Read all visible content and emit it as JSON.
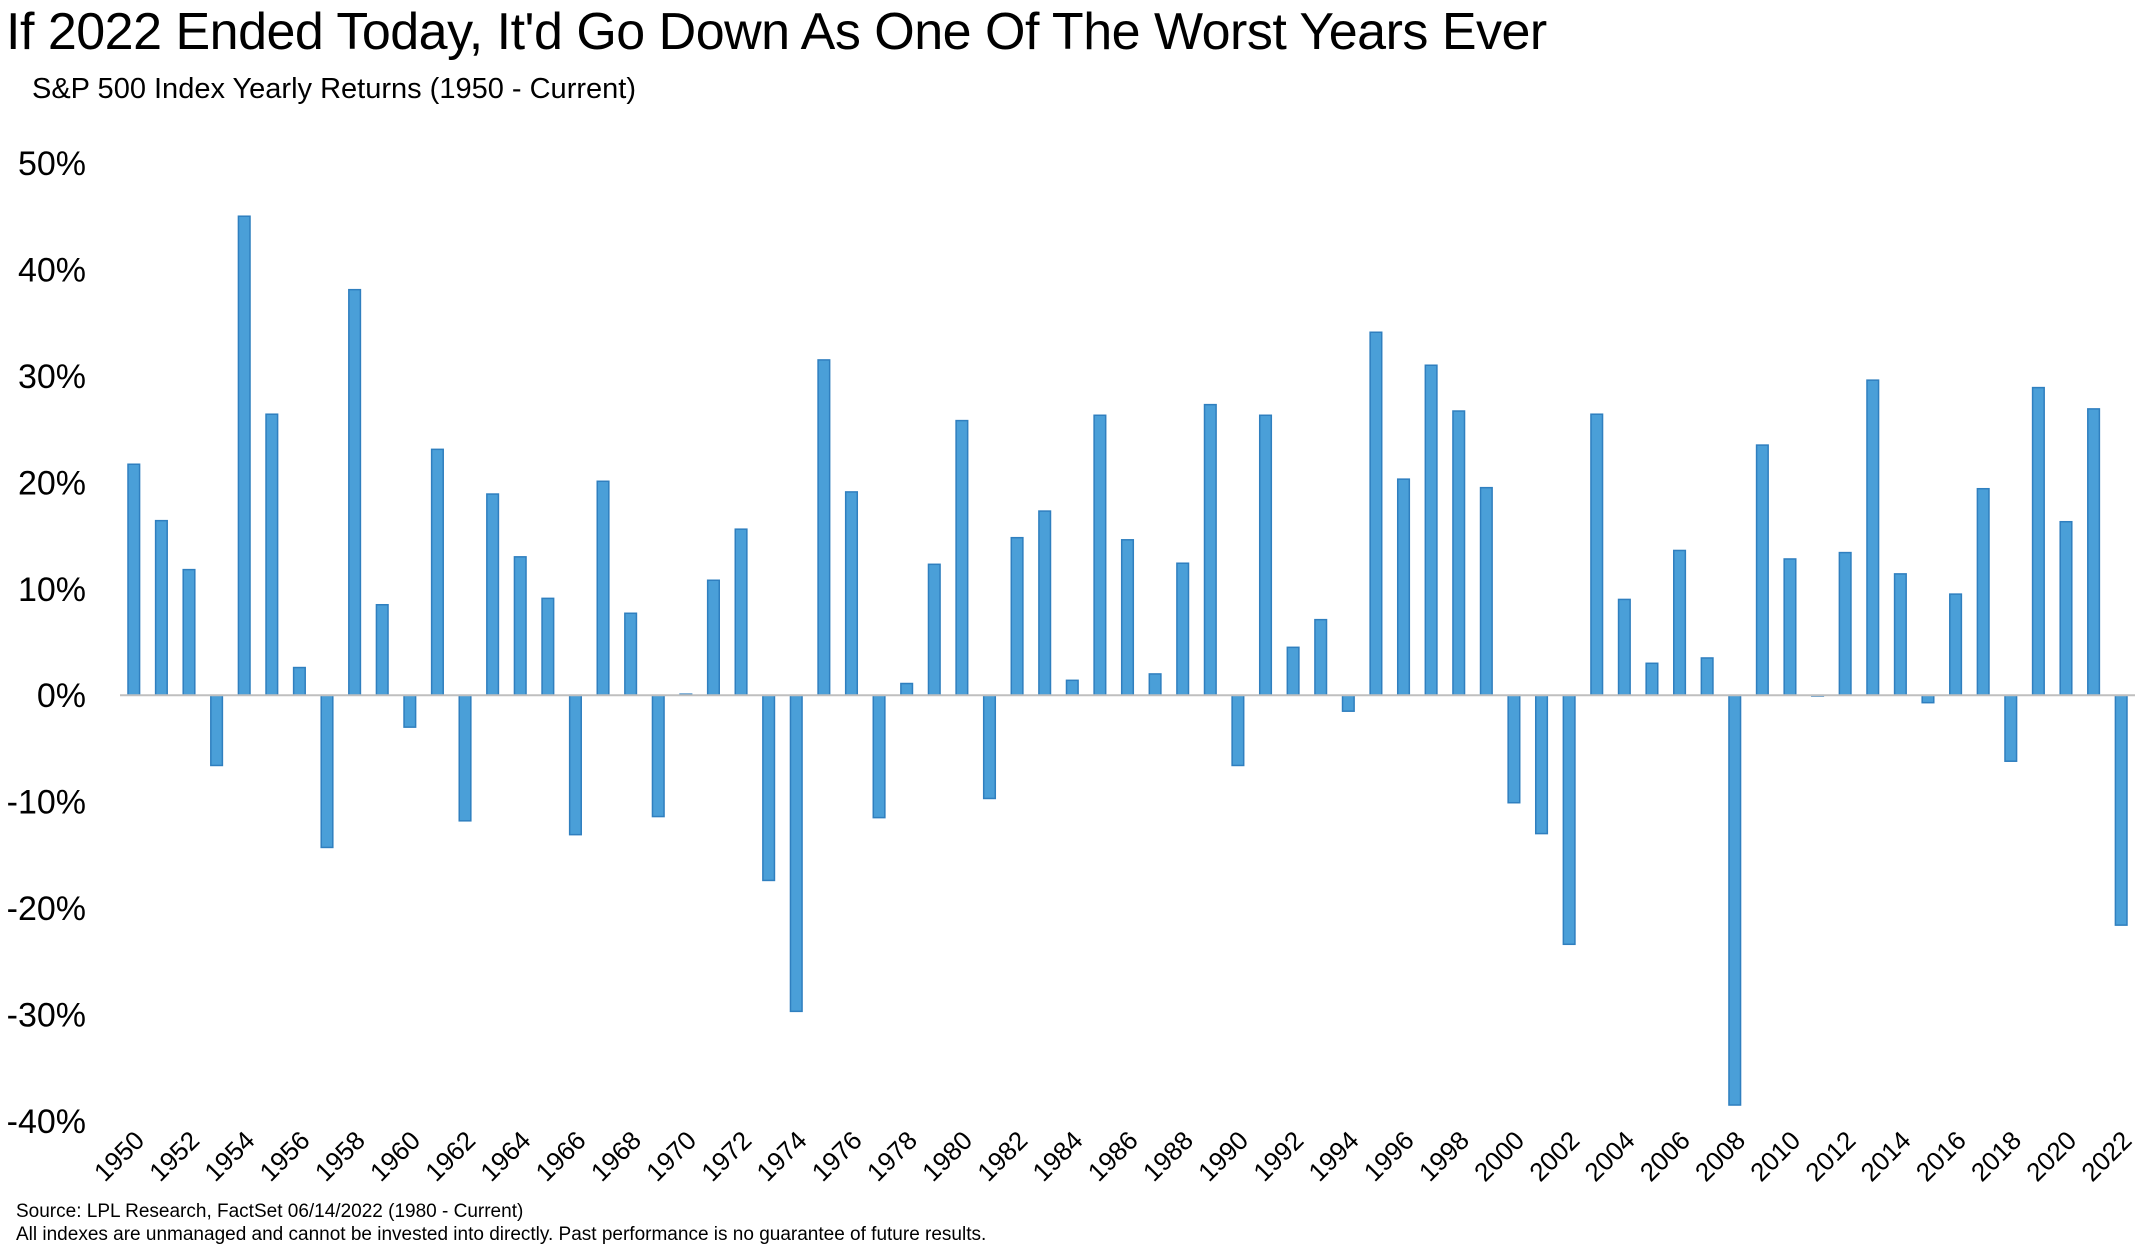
{
  "title": "If 2022 Ended Today, It'd Go Down As One Of The Worst Years Ever",
  "subtitle": "S&P 500 Index Yearly Returns (1950 - Current)",
  "footnotes": {
    "source": "Source: LPL Research, FactSet 06/14/2022 (1980 - Current)",
    "disclaimer": "All indexes are unmanaged and cannot be invested into directly. Past performance is no guarantee of future results."
  },
  "colors": {
    "bar": "#4a9fd8",
    "bar_edge": "#2f7fbf",
    "zero_line": "#bfbfbf"
  },
  "chart_data": {
    "type": "bar",
    "title": "If 2022 Ended Today, It'd Go Down As One Of The Worst Years Ever",
    "subtitle": "S&P 500 Index Yearly Returns (1950 - Current)",
    "xlabel": "",
    "ylabel": "",
    "ylim": [
      -40,
      50
    ],
    "yticks": [
      50,
      40,
      30,
      20,
      10,
      0,
      -10,
      -20,
      -30,
      -40
    ],
    "ytick_labels": [
      "50%",
      "40%",
      "30%",
      "20%",
      "10%",
      "0%",
      "-10%",
      "-20%",
      "-30%",
      "-40%"
    ],
    "xtick_labels": [
      "1950",
      "1952",
      "1954",
      "1956",
      "1958",
      "1960",
      "1962",
      "1964",
      "1966",
      "1968",
      "1970",
      "1972",
      "1974",
      "1976",
      "1978",
      "1980",
      "1982",
      "1984",
      "1986",
      "1988",
      "1990",
      "1992",
      "1994",
      "1996",
      "1998",
      "2000",
      "2002",
      "2004",
      "2006",
      "2008",
      "2010",
      "2012",
      "2014",
      "2016",
      "2018",
      "2020",
      "2022"
    ],
    "grid": false,
    "categories": [
      "1950",
      "1951",
      "1952",
      "1953",
      "1954",
      "1955",
      "1956",
      "1957",
      "1958",
      "1959",
      "1960",
      "1961",
      "1962",
      "1963",
      "1964",
      "1965",
      "1966",
      "1967",
      "1968",
      "1969",
      "1970",
      "1971",
      "1972",
      "1973",
      "1974",
      "1975",
      "1976",
      "1977",
      "1978",
      "1979",
      "1980",
      "1981",
      "1982",
      "1983",
      "1984",
      "1985",
      "1986",
      "1987",
      "1988",
      "1989",
      "1990",
      "1991",
      "1992",
      "1993",
      "1994",
      "1995",
      "1996",
      "1997",
      "1998",
      "1999",
      "2000",
      "2001",
      "2002",
      "2003",
      "2004",
      "2005",
      "2006",
      "2007",
      "2008",
      "2009",
      "2010",
      "2011",
      "2012",
      "2013",
      "2014",
      "2015",
      "2016",
      "2017",
      "2018",
      "2019",
      "2020",
      "2021",
      "2022"
    ],
    "values": [
      21.7,
      16.4,
      11.8,
      -6.6,
      45.0,
      26.4,
      2.6,
      -14.3,
      38.1,
      8.5,
      -3.0,
      23.1,
      -11.8,
      18.9,
      13.0,
      9.1,
      -13.1,
      20.1,
      7.7,
      -11.4,
      0.1,
      10.8,
      15.6,
      -17.4,
      -29.7,
      31.5,
      19.1,
      -11.5,
      1.1,
      12.3,
      25.8,
      -9.7,
      14.8,
      17.3,
      1.4,
      26.3,
      14.6,
      2.0,
      12.4,
      27.3,
      -6.6,
      26.3,
      4.5,
      7.1,
      -1.5,
      34.1,
      20.3,
      31.0,
      26.7,
      19.5,
      -10.1,
      -13.0,
      -23.4,
      26.4,
      9.0,
      3.0,
      13.6,
      3.5,
      -38.5,
      23.5,
      12.8,
      0.0,
      13.4,
      29.6,
      11.4,
      -0.7,
      9.5,
      19.4,
      -6.2,
      28.9,
      16.3,
      26.9,
      -21.6
    ]
  }
}
